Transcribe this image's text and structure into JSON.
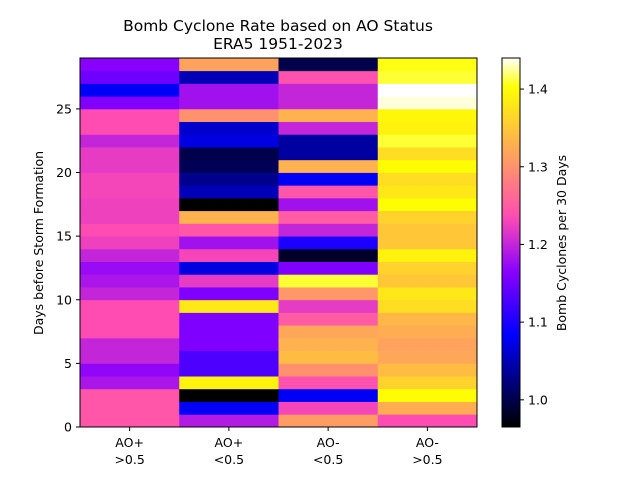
{
  "chart_data": {
    "type": "heatmap",
    "title": "Bomb Cyclone Rate based on AO Status",
    "subtitle": "ERA5 1951-2023",
    "xlabel": "",
    "ylabel": "Days before Storm Formation",
    "categories": [
      {
        "line1": "AO+",
        "line2": ">0.5"
      },
      {
        "line1": "AO+",
        "line2": "<0.5"
      },
      {
        "line1": "AO-",
        "line2": "<0.5"
      },
      {
        "line1": "AO-",
        "line2": ">0.5"
      }
    ],
    "y_ticks": [
      "0",
      "5",
      "10",
      "15",
      "20",
      "25"
    ],
    "ylim": [
      0,
      29
    ],
    "colorbar": {
      "label": "Bomb Cyclones per 30 Days",
      "range": [
        0.965,
        1.44
      ],
      "ticks": [
        "1.0",
        "1.1",
        "1.2",
        "1.3",
        "1.4"
      ],
      "colormap": "gnuplot2"
    },
    "values_by_column_day0_to_28": [
      [
        1.245,
        1.245,
        1.245,
        1.185,
        1.17,
        1.2,
        1.2,
        1.235,
        1.235,
        1.235,
        1.2,
        1.185,
        1.175,
        1.2,
        1.225,
        1.235,
        1.225,
        1.225,
        1.23,
        1.23,
        1.22,
        1.22,
        1.2,
        1.235,
        1.235,
        1.16,
        1.08,
        1.15,
        1.165
      ],
      [
        1.19,
        1.08,
        0.965,
        1.39,
        1.13,
        1.13,
        1.16,
        1.16,
        1.16,
        1.38,
        1.16,
        1.22,
        1.07,
        1.23,
        1.18,
        1.245,
        1.33,
        0.965,
        1.05,
        1.03,
        1.005,
        1.0,
        1.07,
        1.06,
        1.3,
        1.18,
        1.18,
        1.05,
        1.315
      ],
      [
        1.31,
        1.23,
        1.08,
        1.24,
        1.3,
        1.34,
        1.33,
        1.32,
        1.25,
        1.22,
        1.305,
        1.41,
        1.16,
        0.985,
        1.1,
        1.2,
        1.25,
        1.18,
        1.245,
        1.08,
        1.33,
        1.04,
        1.04,
        1.2,
        1.33,
        1.2,
        1.2,
        1.24,
        1.0
      ],
      [
        1.235,
        1.325,
        1.4,
        1.36,
        1.34,
        1.32,
        1.315,
        1.325,
        1.335,
        1.37,
        1.38,
        1.35,
        1.36,
        1.39,
        1.35,
        1.35,
        1.36,
        1.4,
        1.38,
        1.37,
        1.4,
        1.37,
        1.41,
        1.39,
        1.395,
        1.435,
        1.445,
        1.41,
        1.405
      ]
    ]
  }
}
